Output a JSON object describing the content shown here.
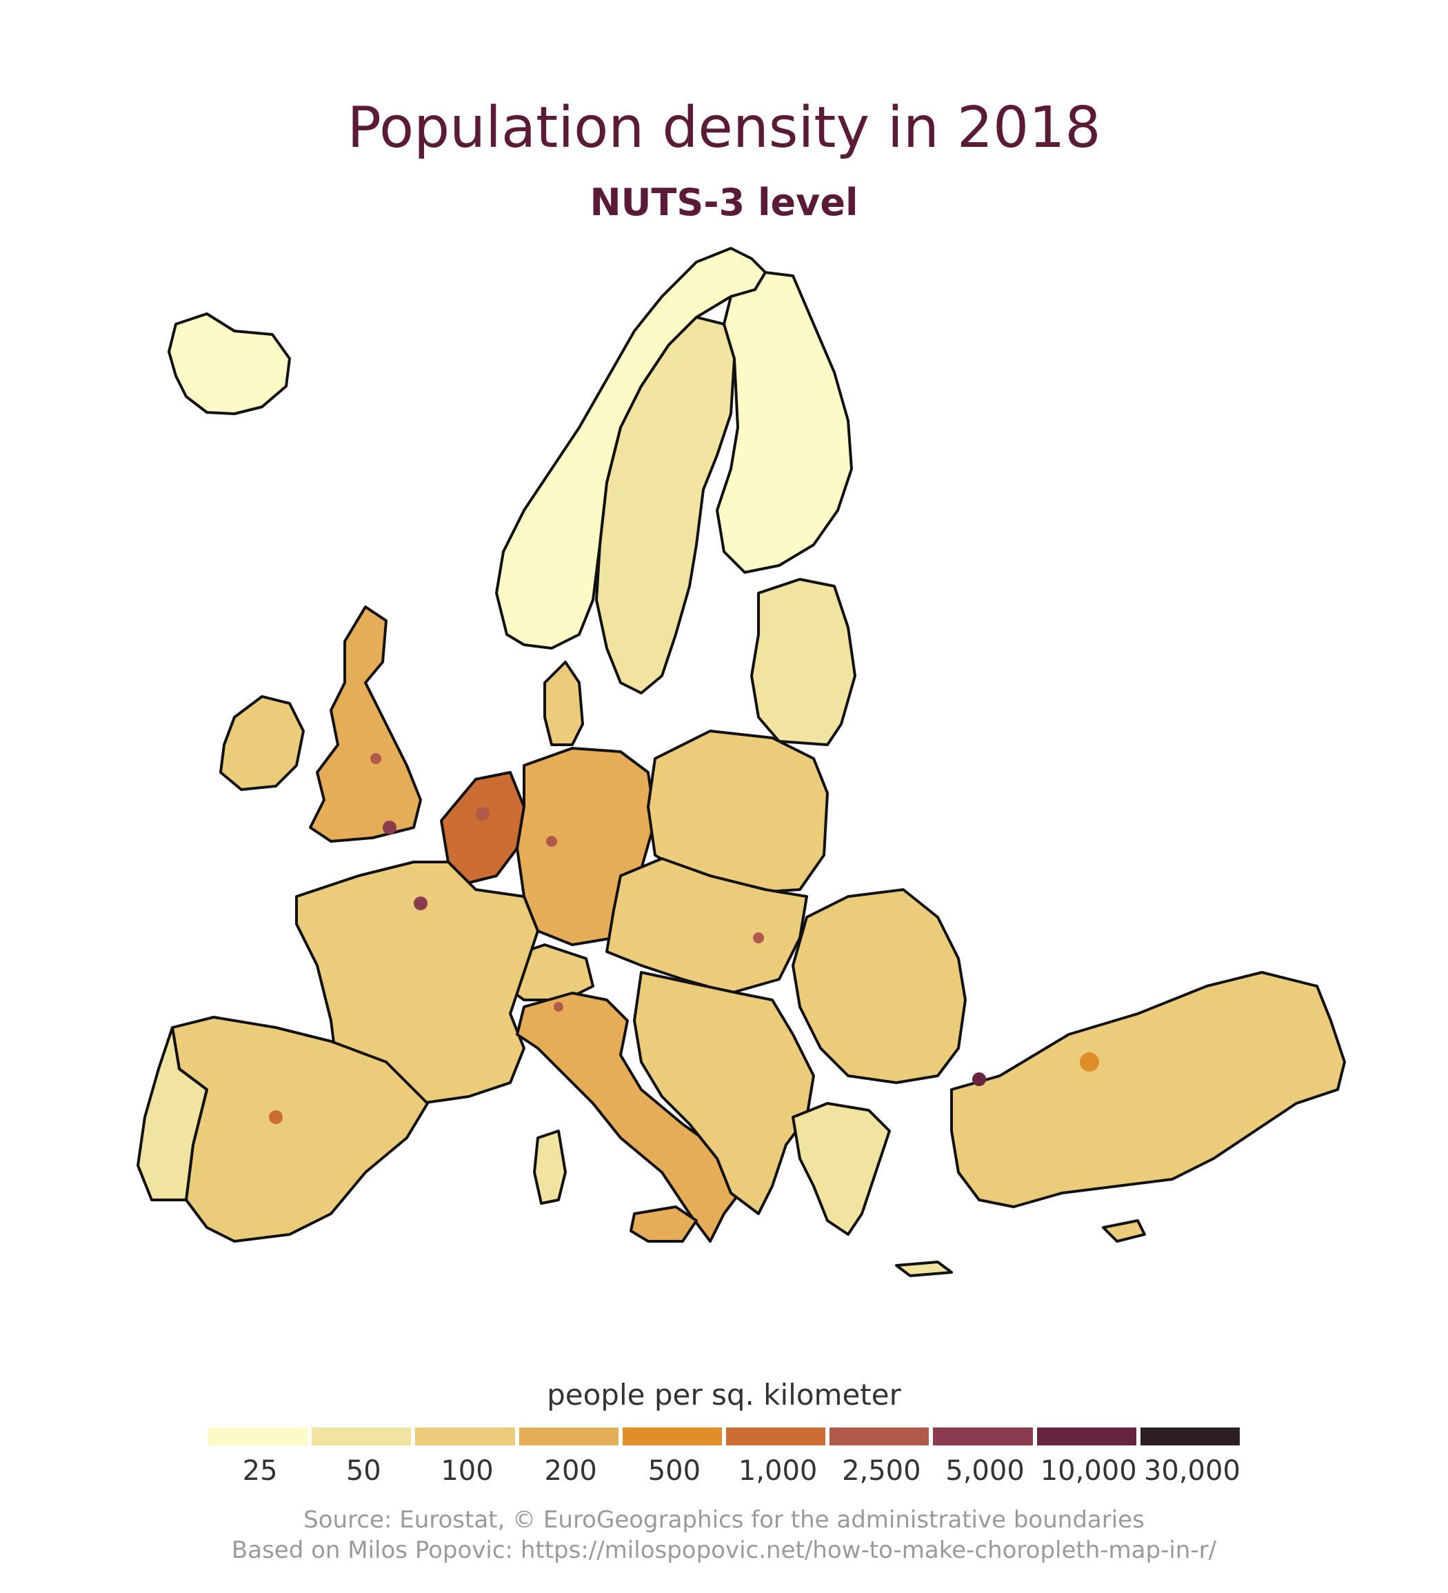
{
  "title": "Population density in 2018",
  "subtitle": "NUTS-3 level",
  "legend": {
    "title": "people per sq. kilometer",
    "classes": [
      {
        "label": "25",
        "color": "#fcfbc8"
      },
      {
        "label": "50",
        "color": "#f1e4a0"
      },
      {
        "label": "100",
        "color": "#ebcc7a"
      },
      {
        "label": "200",
        "color": "#e6ad58"
      },
      {
        "label": "500",
        "color": "#df8e2a"
      },
      {
        "label": "1,000",
        "color": "#cc6e33"
      },
      {
        "label": "2,500",
        "color": "#b05a4b"
      },
      {
        "label": "5,000",
        "color": "#8a3c4e"
      },
      {
        "label": "10,000",
        "color": "#652540"
      },
      {
        "label": "30,000",
        "color": "#2e1e26"
      }
    ]
  },
  "caption": {
    "line1": "Source: Eurostat, © EuroGeographics for the administrative boundaries",
    "line2": "Based on Milos Popovic: https://milospopovic.net/how-to-make-choropleth-map-in-r/"
  }
}
